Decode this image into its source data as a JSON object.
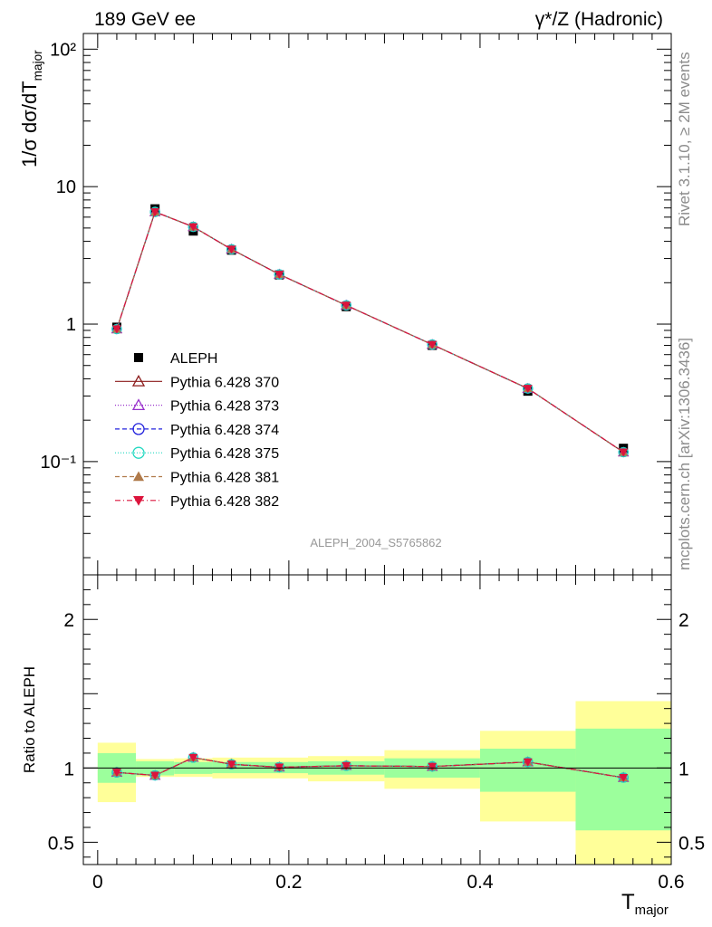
{
  "header": {
    "left_title": "189 GeV ee",
    "right_title": "γ*/Z (Hadronic)"
  },
  "side_labels": {
    "rivet": "Rivet 3.1.10, ≥ 2M events",
    "mcplots": "mcplots.cern.ch [arXiv:1306.3436]"
  },
  "watermark": "ALEPH_2004_S5765862",
  "chart_data": [
    {
      "panel": "main",
      "type": "line",
      "ylabel": "1/σ dσ/dT_major",
      "yscale": "log",
      "ylim": [
        0.015,
        130
      ],
      "xlim": [
        -0.015,
        0.6
      ],
      "y_ticks": [
        {
          "v": 100,
          "label": "10²"
        },
        {
          "v": 10,
          "label": "10"
        },
        {
          "v": 1,
          "label": "1"
        },
        {
          "v": 0.1,
          "label": "10⁻¹"
        }
      ],
      "x": [
        0.02,
        0.06,
        0.1,
        0.14,
        0.19,
        0.26,
        0.35,
        0.45,
        0.55
      ],
      "data": {
        "name": "ALEPH",
        "y": [
          0.95,
          6.9,
          4.75,
          3.45,
          2.28,
          1.34,
          0.7,
          0.325,
          0.125
        ],
        "color": "#000000",
        "marker": "square"
      },
      "series": [
        {
          "name": "Pythia 6.428 370",
          "color": "#8b1a1a",
          "marker": "triangle-open",
          "dash": "",
          "y": [
            0.92,
            6.55,
            5.1,
            3.5,
            2.3,
            1.37,
            0.71,
            0.34,
            0.117
          ]
        },
        {
          "name": "Pythia 6.428 373",
          "color": "#9932cc",
          "marker": "triangle-open",
          "dash": "1,2",
          "y": [
            0.92,
            6.55,
            5.1,
            3.5,
            2.3,
            1.37,
            0.71,
            0.34,
            0.117
          ]
        },
        {
          "name": "Pythia 6.428 374",
          "color": "#2222dd",
          "marker": "circle-open",
          "dash": "5,3",
          "y": [
            0.92,
            6.55,
            5.1,
            3.5,
            2.3,
            1.37,
            0.71,
            0.34,
            0.117
          ]
        },
        {
          "name": "Pythia 6.428 375",
          "color": "#20d8c0",
          "marker": "circle-open",
          "dash": "1,2",
          "y": [
            0.92,
            6.55,
            5.1,
            3.5,
            2.3,
            1.37,
            0.71,
            0.34,
            0.117
          ]
        },
        {
          "name": "Pythia 6.428 381",
          "color": "#b07a4a",
          "marker": "triangle-filled",
          "dash": "5,3",
          "y": [
            0.92,
            6.55,
            5.1,
            3.5,
            2.3,
            1.37,
            0.71,
            0.34,
            0.117
          ]
        },
        {
          "name": "Pythia 6.428 382",
          "color": "#dc143c",
          "marker": "triangle-down-filled",
          "dash": "6,3,1,3",
          "y": [
            0.92,
            6.55,
            5.1,
            3.5,
            2.3,
            1.37,
            0.71,
            0.34,
            0.117
          ]
        }
      ]
    },
    {
      "panel": "ratio",
      "type": "line",
      "ylabel": "Ratio to ALEPH",
      "xlabel": "T_major",
      "ylim": [
        0.35,
        2.3
      ],
      "xlim": [
        -0.015,
        0.6
      ],
      "y_ticks": [
        {
          "v": 2,
          "label": "2"
        },
        {
          "v": 1,
          "label": "1"
        },
        {
          "v": 0.5,
          "label": "0.5"
        }
      ],
      "x_ticks": [
        {
          "v": 0,
          "label": "0"
        },
        {
          "v": 0.2,
          "label": "0.2"
        },
        {
          "v": 0.4,
          "label": "0.4"
        },
        {
          "v": 0.6,
          "label": "0.6"
        }
      ],
      "bins": [
        {
          "lo": 0.0,
          "hi": 0.04,
          "stat": [
            0.9,
            1.1
          ],
          "total": [
            0.77,
            1.17
          ]
        },
        {
          "lo": 0.04,
          "hi": 0.08,
          "stat": [
            0.95,
            1.045
          ],
          "total": [
            0.94,
            1.06
          ]
        },
        {
          "lo": 0.08,
          "hi": 0.12,
          "stat": [
            0.96,
            1.04
          ],
          "total": [
            0.94,
            1.065
          ]
        },
        {
          "lo": 0.12,
          "hi": 0.22,
          "stat": [
            0.965,
            1.04
          ],
          "total": [
            0.93,
            1.07
          ]
        },
        {
          "lo": 0.22,
          "hi": 0.3,
          "stat": [
            0.955,
            1.045
          ],
          "total": [
            0.91,
            1.08
          ]
        },
        {
          "lo": 0.3,
          "hi": 0.4,
          "stat": [
            0.935,
            1.065
          ],
          "total": [
            0.86,
            1.12
          ]
        },
        {
          "lo": 0.4,
          "hi": 0.5,
          "stat": [
            0.84,
            1.13
          ],
          "total": [
            0.64,
            1.25
          ]
        },
        {
          "lo": 0.5,
          "hi": 0.6,
          "stat": [
            0.58,
            1.265
          ],
          "total": [
            0.0,
            1.45
          ]
        }
      ],
      "x": [
        0.02,
        0.06,
        0.1,
        0.14,
        0.19,
        0.26,
        0.35,
        0.45,
        0.55
      ],
      "ratio": [
        0.97,
        0.95,
        1.07,
        1.025,
        1.005,
        1.015,
        1.01,
        1.04,
        0.935
      ],
      "band_colors": {
        "stat": "#9cff9c",
        "total": "#ffff99"
      }
    }
  ]
}
